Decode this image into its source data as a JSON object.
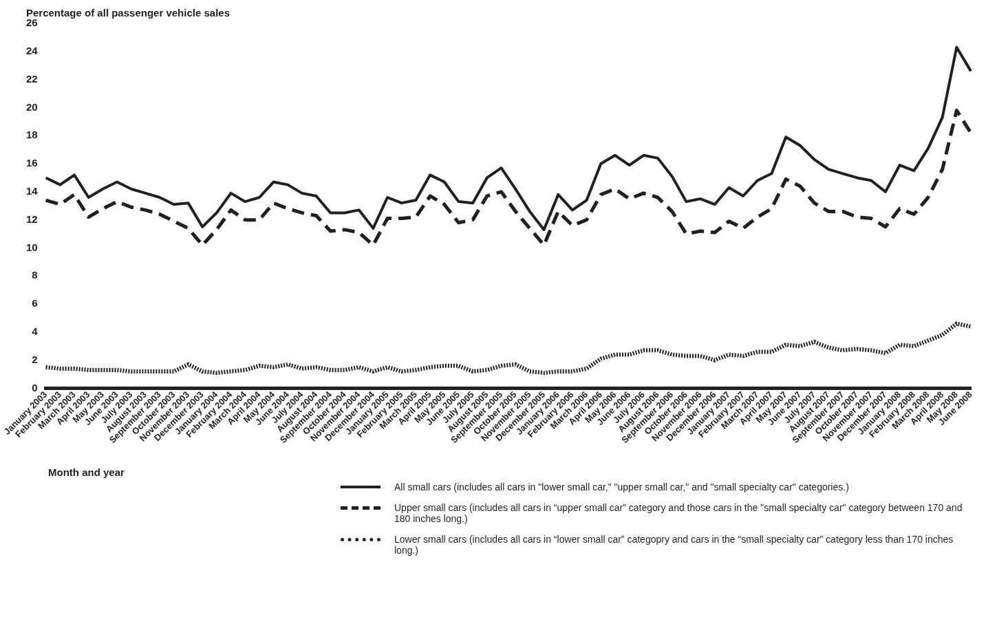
{
  "chart_data": {
    "type": "line",
    "ylabel": "Percentage of all passenger vehicle sales",
    "xlabel": "Month and year",
    "categories": [
      "January 2003",
      "February 2003",
      "March 2003",
      "April 2003",
      "May 2003",
      "June 2003",
      "July 2003",
      "August 2003",
      "September 2003",
      "October 2003",
      "November 2003",
      "December 2003",
      "January 2004",
      "February 2004",
      "March 2004",
      "April 2004",
      "May 2004",
      "June 2004",
      "July 2004",
      "August 2004",
      "September 2004",
      "October 2004",
      "November 2004",
      "December 2004",
      "January 2005",
      "February 2005",
      "March 2005",
      "April 2005",
      "May 2005",
      "June 2005",
      "July 2005",
      "August 2005",
      "September 2005",
      "October 2005",
      "November 2005",
      "December 2005",
      "January 2006",
      "February 2006",
      "March 2006",
      "April 2006",
      "May 2006",
      "June 2006",
      "July 2006",
      "August 2006",
      "September 2006",
      "October 2006",
      "November 2006",
      "December 2006",
      "January 2007",
      "February 2007",
      "March 2007",
      "April 2007",
      "May 2007",
      "June 2007",
      "July 2007",
      "August 2007",
      "September 2007",
      "October 2007",
      "November 2007",
      "December 2007",
      "January 2008",
      "February 2008",
      "March 2008",
      "April 2008",
      "May 2008",
      "June 2008"
    ],
    "series": [
      {
        "name": "All small cars (includes all cars in \"lower small car,\" \"upper small car,\" and \"small specialty car\" categories.)",
        "color": "#231f20",
        "line_style": "solid",
        "values": [
          15.0,
          14.5,
          15.2,
          13.6,
          14.2,
          14.7,
          14.2,
          13.9,
          13.6,
          13.1,
          13.2,
          11.5,
          12.5,
          13.9,
          13.3,
          13.6,
          14.7,
          14.5,
          13.9,
          13.7,
          12.5,
          12.5,
          12.7,
          11.4,
          13.6,
          13.2,
          13.4,
          15.2,
          14.7,
          13.3,
          13.2,
          15.0,
          15.7,
          14.2,
          12.6,
          11.3,
          13.8,
          12.7,
          13.4,
          16.0,
          16.6,
          15.9,
          16.6,
          16.4,
          15.1,
          13.3,
          13.5,
          13.1,
          14.3,
          13.7,
          14.8,
          15.3,
          17.9,
          17.3,
          16.3,
          15.6,
          15.3,
          15.0,
          14.8,
          14.0,
          15.9,
          15.5,
          17.1,
          19.3,
          24.3,
          22.6
        ]
      },
      {
        "name": "Upper small cars (includes all cars in “upper small car” category and those cars in the \"small specialty car\" category between 170 and 180 inches long.)",
        "color": "#231f20",
        "line_style": "dashed",
        "values": [
          13.4,
          13.1,
          13.8,
          12.2,
          12.8,
          13.3,
          12.9,
          12.7,
          12.4,
          11.9,
          11.4,
          10.2,
          11.3,
          12.7,
          12.0,
          12.0,
          13.2,
          12.8,
          12.5,
          12.3,
          11.2,
          11.3,
          11.1,
          10.2,
          12.1,
          12.1,
          12.2,
          13.7,
          13.1,
          11.8,
          12.0,
          13.7,
          14.0,
          12.6,
          11.4,
          10.2,
          12.6,
          11.6,
          12.0,
          13.8,
          14.2,
          13.5,
          13.9,
          13.6,
          12.6,
          11.0,
          11.2,
          11.1,
          11.9,
          11.4,
          12.2,
          12.8,
          14.9,
          14.4,
          13.2,
          12.6,
          12.6,
          12.2,
          12.1,
          11.5,
          12.8,
          12.4,
          13.6,
          15.6,
          19.8,
          18.2
        ]
      },
      {
        "name": "Lower small cars (includes all cars in “lower small car” categopry and cars in the “small specialty car” category less than 170 inches long.)",
        "color": "#231f20",
        "line_style": "dotted",
        "values": [
          1.5,
          1.4,
          1.4,
          1.3,
          1.3,
          1.3,
          1.2,
          1.2,
          1.2,
          1.2,
          1.7,
          1.2,
          1.1,
          1.2,
          1.3,
          1.6,
          1.5,
          1.7,
          1.4,
          1.5,
          1.3,
          1.3,
          1.5,
          1.2,
          1.5,
          1.2,
          1.3,
          1.5,
          1.6,
          1.6,
          1.2,
          1.3,
          1.6,
          1.7,
          1.2,
          1.1,
          1.2,
          1.2,
          1.4,
          2.1,
          2.4,
          2.4,
          2.7,
          2.7,
          2.4,
          2.3,
          2.3,
          2.0,
          2.4,
          2.3,
          2.6,
          2.6,
          3.1,
          3.0,
          3.3,
          2.9,
          2.7,
          2.8,
          2.7,
          2.5,
          3.1,
          3.0,
          3.4,
          3.8,
          4.6,
          4.4
        ]
      }
    ],
    "ylim": [
      0,
      26
    ],
    "yticks": [
      0,
      2,
      4,
      6,
      8,
      10,
      12,
      14,
      16,
      18,
      20,
      22,
      24,
      26
    ],
    "grid": false,
    "legend": "bottom",
    "marker": "none"
  }
}
